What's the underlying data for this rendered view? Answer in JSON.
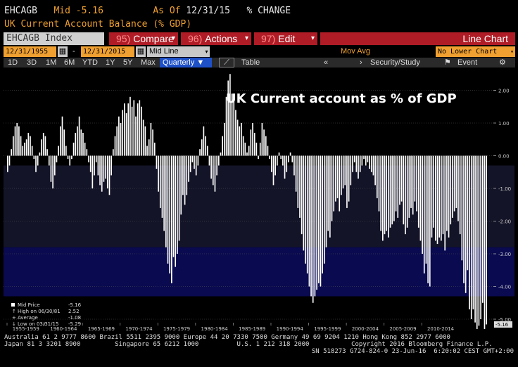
{
  "header": {
    "ticker": "EHCAGB",
    "mid_label": "Mid",
    "mid_value": "-5.16",
    "asof_label": "As Of",
    "asof_date": "12/31/15",
    "mode": "% CHANGE",
    "security_name": "UK Current Account Balance (% GDP)"
  },
  "menu": {
    "index_label": "EHCAGB Index",
    "compare_num": "95)",
    "compare_label": "Compare",
    "actions_num": "96)",
    "actions_label": "Actions",
    "edit_num": "97)",
    "edit_label": "Edit",
    "chart_type": "Line Chart"
  },
  "controls": {
    "start_date": "12/31/1955",
    "end_date": "12/31/2015",
    "dash": "-",
    "price_field": "Mid Line",
    "mov_avg": "Mov Avg",
    "lower_chart": "No Lower Chart"
  },
  "toolbar": {
    "ranges": [
      "1D",
      "3D",
      "1M",
      "6M",
      "YTD",
      "1Y",
      "5Y",
      "Max"
    ],
    "period": "Quarterly",
    "table_label": "Table",
    "security_study": "Security/Study",
    "event_label": "Event"
  },
  "legend": {
    "mid_price_label": "Mid Price",
    "mid_price_value": "-5.16",
    "high_label": "High on 06/30/81",
    "high_value": "2.52",
    "average_label": "Average",
    "average_value": "-1.08",
    "low_label": "Low on 03/31/15",
    "low_value": "-5.29"
  },
  "last_price_tag": "-5.16",
  "footer": {
    "line1": "Australia 61 2 9777 8600 Brazil 5511 2395 9000 Europe 44 20 7330 7500 Germany 49 69 9204 1210 Hong Kong 852 2977 6000",
    "line2": "Japan 81 3 3201 8900         Singapore 65 6212 1000          U.S. 1 212 318 2000           Copyright 2016 Bloomberg Finance L.P.",
    "line3": "SN 518273 G724-824-0 23-Jun-16  6:20:02 CEST GMT+2:00"
  },
  "colors": {
    "amber": "#f0a030",
    "red_menu": "#b01c26",
    "bars": "#ffffff",
    "band_dark": "#141428",
    "band_navy": "#0a0a50"
  },
  "chart_data": {
    "type": "bar",
    "title": "UK Current account as % of GDP",
    "frequency": "quarterly",
    "x_start": "1955-Q1",
    "x_end": "2015-Q4",
    "x_tick_labels": [
      "1955-1959",
      "1960-1964",
      "1965-1969",
      "1970-1974",
      "1975-1979",
      "1980-1984",
      "1985-1989",
      "1990-1994",
      "1995-1999",
      "2000-2004",
      "2005-2009",
      "2010-2014"
    ],
    "y_tick_labels": [
      "2.00",
      "1.00",
      "0.00",
      "-1.00",
      "-2.00",
      "-3.00",
      "-4.00",
      "-5.00"
    ],
    "y_ticks": [
      2,
      1,
      0,
      -1,
      -2,
      -3,
      -4,
      -5
    ],
    "ylim": [
      -5.3,
      2.6
    ],
    "grid": true,
    "values": [
      -0.5,
      -0.3,
      0.2,
      0.6,
      0.9,
      1.0,
      0.9,
      0.6,
      0.3,
      0.4,
      0.5,
      0.7,
      0.6,
      0.3,
      -0.1,
      -0.5,
      -0.3,
      0.1,
      0.5,
      0.7,
      0.6,
      0.2,
      -0.3,
      -0.8,
      -1.0,
      -0.6,
      -0.2,
      0.3,
      0.9,
      1.2,
      0.8,
      0.3,
      -0.1,
      -0.3,
      -0.1,
      0.4,
      0.7,
      0.9,
      1.2,
      0.8,
      0.7,
      0.4,
      0.2,
      -0.2,
      -0.5,
      -1.0,
      -0.6,
      -0.2,
      -0.6,
      -0.9,
      -1.1,
      -0.8,
      -0.7,
      -1.0,
      -1.2,
      -0.6,
      0.2,
      0.6,
      0.9,
      1.2,
      1.0,
      1.4,
      1.6,
      1.3,
      1.6,
      1.8,
      1.5,
      1.7,
      1.2,
      1.6,
      1.7,
      1.5,
      1.1,
      0.9,
      0.3,
      0.5,
      1.0,
      0.8,
      0.4,
      -0.4,
      -1.1,
      -1.6,
      -1.9,
      -2.3,
      -2.8,
      -3.3,
      -3.6,
      -3.9,
      -3.1,
      -3.4,
      -3.0,
      -2.6,
      -1.8,
      -1.2,
      -1.5,
      -1.2,
      -0.8,
      -0.5,
      -0.2,
      -0.4,
      -0.6,
      -0.3,
      0.2,
      0.5,
      0.9,
      0.6,
      0.3,
      -0.3,
      -0.7,
      -0.9,
      -1.1,
      -0.6,
      -0.3,
      0.1,
      0.6,
      1.0,
      1.8,
      2.3,
      2.5,
      1.9,
      1.7,
      1.4,
      1.1,
      0.9,
      1.0,
      0.6,
      0.4,
      0.1,
      0.3,
      0.8,
      1.0,
      0.7,
      0.4,
      -0.1,
      0.4,
      1.0,
      0.8,
      0.6,
      0.3,
      -0.1,
      -0.5,
      -0.9,
      -0.6,
      -0.3,
      0.1,
      -0.1,
      -0.3,
      -0.7,
      -0.5,
      -0.2,
      0.1,
      -0.2,
      -0.6,
      -1.1,
      -1.6,
      -1.9,
      -2.4,
      -2.9,
      -3.3,
      -3.6,
      -4.0,
      -4.3,
      -4.5,
      -4.3,
      -4.1,
      -3.9,
      -4.0,
      -3.6,
      -3.3,
      -2.8,
      -2.3,
      -2.5,
      -2.0,
      -1.7,
      -1.4,
      -1.3,
      -1.7,
      -1.2,
      -1.0,
      -0.9,
      -1.6,
      -1.4,
      -0.9,
      -0.5,
      -0.2,
      -0.5,
      -0.7,
      -0.5,
      -0.3,
      -0.1,
      -0.3,
      -0.2,
      -0.4,
      -0.5,
      -0.6,
      -0.9,
      -1.3,
      -1.7,
      -2.3,
      -2.6,
      -2.4,
      -2.3,
      -2.5,
      -2.2,
      -2.1,
      -2.0,
      -1.7,
      -1.9,
      -1.5,
      -1.4,
      -2.1,
      -2.4,
      -2.2,
      -1.9,
      -1.6,
      -1.8,
      -1.4,
      -1.7,
      -2.2,
      -2.6,
      -3.0,
      -3.6,
      -3.3,
      -3.9,
      -4.0,
      -2.5,
      -2.2,
      -2.6,
      -2.7,
      -2.5,
      -2.6,
      -2.4,
      -2.9,
      -2.3,
      -2.5,
      -2.1,
      -1.9,
      -1.7,
      -1.6,
      -2.0,
      -2.4,
      -3.2,
      -3.9,
      -4.2,
      -3.5,
      -4.7,
      -5.0,
      -4.7,
      -5.1,
      -5.3,
      -5.2,
      -5.0,
      -4.5,
      -5.3,
      -5.16
    ]
  }
}
